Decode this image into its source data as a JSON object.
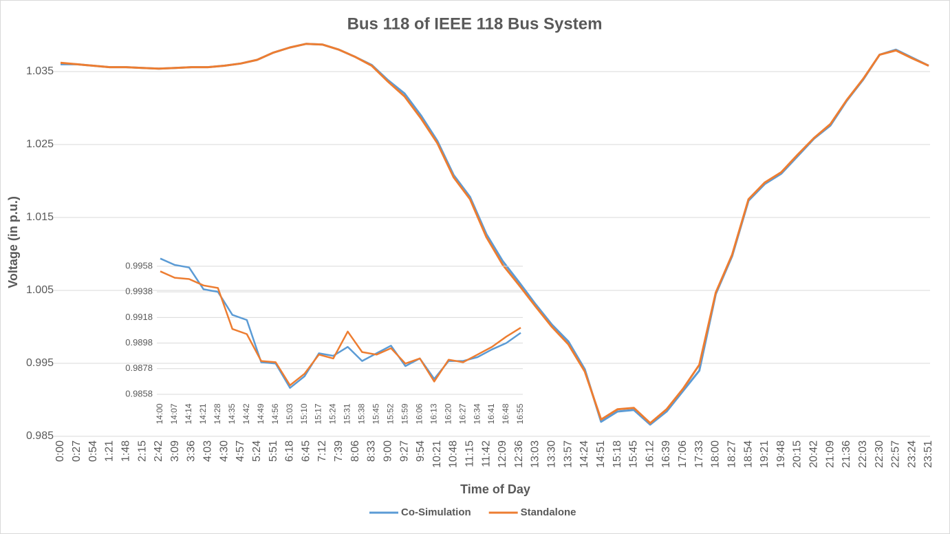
{
  "chart_data": [
    {
      "type": "line",
      "title": "Bus 118 of IEEE 118 Bus System",
      "x_label": "Time of Day",
      "y_label": "Voltage (in p.u.)",
      "categories": [
        "0:00",
        "0:27",
        "0:54",
        "1:21",
        "1:48",
        "2:15",
        "2:42",
        "3:09",
        "3:36",
        "4:03",
        "4:30",
        "4:57",
        "5:24",
        "5:51",
        "6:18",
        "6:45",
        "7:12",
        "7:39",
        "8:06",
        "8:33",
        "9:00",
        "9:27",
        "9:54",
        "10:21",
        "10:48",
        "11:15",
        "11:42",
        "12:09",
        "12:36",
        "13:03",
        "13:30",
        "13:57",
        "14:24",
        "14:51",
        "15:18",
        "15:45",
        "16:12",
        "16:39",
        "17:06",
        "17:33",
        "18:00",
        "18:27",
        "18:54",
        "19:21",
        "19:48",
        "20:15",
        "20:42",
        "21:09",
        "21:36",
        "22:03",
        "22:30",
        "22:57",
        "23:24",
        "23:51"
      ],
      "series": [
        {
          "name": "Co-Simulation",
          "color": "#5b9bd5",
          "values": [
            1.036,
            1.036,
            1.0358,
            1.0356,
            1.0356,
            1.0355,
            1.0354,
            1.0355,
            1.0356,
            1.0356,
            1.0358,
            1.0361,
            1.0366,
            1.0376,
            1.0383,
            1.0388,
            1.0387,
            1.038,
            1.037,
            1.0359,
            1.0338,
            1.032,
            1.029,
            1.0255,
            1.0208,
            1.0178,
            1.0127,
            1.009,
            1.0061,
            1.0031,
            1.0003,
            0.998,
            0.9942,
            0.987,
            0.9884,
            0.9886,
            0.9866,
            0.9884,
            0.9912,
            0.994,
            1.0045,
            1.0097,
            1.0173,
            1.0196,
            1.021,
            1.0234,
            1.0258,
            1.0276,
            1.031,
            1.0339,
            1.0373,
            1.038,
            1.0369,
            1.0358
          ]
        },
        {
          "name": "Standalone",
          "color": "#ed7d31",
          "values": [
            1.0362,
            1.036,
            1.0358,
            1.0356,
            1.0356,
            1.0355,
            1.0354,
            1.0355,
            1.0356,
            1.0356,
            1.0358,
            1.0361,
            1.0366,
            1.0376,
            1.0383,
            1.0388,
            1.0387,
            1.038,
            1.037,
            1.0358,
            1.0336,
            1.0316,
            1.0286,
            1.0252,
            1.0205,
            1.0175,
            1.0123,
            1.0085,
            1.0057,
            1.0028,
            1.0,
            0.9976,
            0.9939,
            0.9873,
            0.9887,
            0.9889,
            0.9868,
            0.9887,
            0.9915,
            0.9948,
            1.0047,
            1.0099,
            1.0175,
            1.0198,
            1.0212,
            1.0236,
            1.0259,
            1.0278,
            1.0311,
            1.034,
            1.0373,
            1.0379,
            1.0368,
            1.0358
          ]
        }
      ],
      "ylim": [
        0.985,
        1.04
      ],
      "yticks": [
        0.985,
        0.995,
        1.005,
        1.015,
        1.025,
        1.035
      ],
      "grid": true,
      "legend": "bottom"
    },
    {
      "type": "line",
      "categories": [
        "14:00",
        "14:07",
        "14:14",
        "14:21",
        "14:28",
        "14:35",
        "14:42",
        "14:49",
        "14:56",
        "15:03",
        "15:10",
        "15:17",
        "15:24",
        "15:31",
        "15:38",
        "15:45",
        "15:52",
        "15:59",
        "16:06",
        "16:13",
        "16:20",
        "16:27",
        "16:34",
        "16:41",
        "16:48",
        "16:55"
      ],
      "series": [
        {
          "name": "Co-Simulation",
          "color": "#5b9bd5",
          "values": [
            0.9964,
            0.9959,
            0.9957,
            0.994,
            0.9938,
            0.992,
            0.9916,
            0.9883,
            0.9882,
            0.9863,
            0.9872,
            0.989,
            0.9888,
            0.9895,
            0.9884,
            0.989,
            0.9896,
            0.988,
            0.9886,
            0.987,
            0.9884,
            0.9884,
            0.9887,
            0.9893,
            0.9898,
            0.9906
          ]
        },
        {
          "name": "Standalone",
          "color": "#ed7d31",
          "values": [
            0.9954,
            0.9949,
            0.9948,
            0.9943,
            0.9941,
            0.9909,
            0.9905,
            0.9884,
            0.9883,
            0.9865,
            0.9874,
            0.9889,
            0.9886,
            0.9907,
            0.9891,
            0.9889,
            0.9894,
            0.9882,
            0.9886,
            0.9868,
            0.9885,
            0.9883,
            0.9889,
            0.9895,
            0.9903,
            0.991
          ]
        }
      ],
      "ylim": [
        0.9854,
        0.9966
      ],
      "yticks": [
        0.9858,
        0.9878,
        0.9898,
        0.9918,
        0.9938,
        0.9958
      ],
      "grid": true
    }
  ]
}
